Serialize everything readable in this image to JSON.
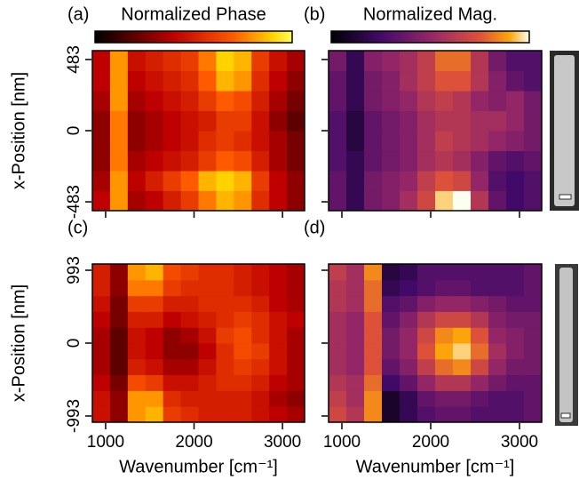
{
  "chart_data": [
    {
      "type": "heatmap",
      "panel_label": "(a)",
      "colorbar_label": "Normalized Phase",
      "colormap": "hot",
      "ylabel": "x-Position [nm]",
      "x": [
        950,
        1150,
        1350,
        1550,
        1750,
        1950,
        2150,
        2350,
        2550,
        2750,
        2950,
        3150
      ],
      "y": [
        -475,
        -339,
        -204,
        -68,
        68,
        204,
        339,
        475
      ],
      "z": [
        [
          0.4,
          0.8,
          0.35,
          0.4,
          0.5,
          0.6,
          0.75,
          0.85,
          0.8,
          0.55,
          0.4,
          0.3
        ],
        [
          0.35,
          0.8,
          0.4,
          0.5,
          0.6,
          0.7,
          0.85,
          0.9,
          0.85,
          0.6,
          0.4,
          0.3
        ],
        [
          0.3,
          0.75,
          0.35,
          0.4,
          0.45,
          0.5,
          0.6,
          0.7,
          0.65,
          0.5,
          0.35,
          0.25
        ],
        [
          0.3,
          0.75,
          0.3,
          0.35,
          0.4,
          0.45,
          0.55,
          0.6,
          0.55,
          0.45,
          0.35,
          0.25
        ],
        [
          0.3,
          0.75,
          0.3,
          0.35,
          0.4,
          0.45,
          0.5,
          0.6,
          0.6,
          0.45,
          0.3,
          0.2
        ],
        [
          0.35,
          0.8,
          0.35,
          0.4,
          0.45,
          0.5,
          0.6,
          0.7,
          0.65,
          0.5,
          0.35,
          0.25
        ],
        [
          0.4,
          0.8,
          0.4,
          0.45,
          0.5,
          0.55,
          0.7,
          0.85,
          0.8,
          0.55,
          0.4,
          0.3
        ],
        [
          0.4,
          0.8,
          0.45,
          0.5,
          0.55,
          0.6,
          0.75,
          0.9,
          0.85,
          0.6,
          0.45,
          0.35
        ]
      ],
      "xlim": [
        850,
        3250
      ],
      "xticks": [
        1000,
        2000,
        3000
      ],
      "ylim": [
        -543,
        543
      ],
      "yticks": [
        -483,
        0,
        483
      ]
    },
    {
      "type": "heatmap",
      "panel_label": "(b)",
      "colorbar_label": "Normalized Mag.",
      "colormap": "inferno",
      "x": [
        950,
        1150,
        1350,
        1550,
        1750,
        1950,
        2150,
        2350,
        2550,
        2750,
        2950,
        3150
      ],
      "y": [
        -475,
        -339,
        -204,
        -68,
        68,
        204,
        339,
        475
      ],
      "z": [
        [
          0.35,
          0.2,
          0.4,
          0.45,
          0.55,
          0.7,
          0.95,
          1.0,
          0.6,
          0.35,
          0.25,
          0.3
        ],
        [
          0.35,
          0.2,
          0.4,
          0.45,
          0.5,
          0.65,
          0.75,
          0.7,
          0.5,
          0.3,
          0.25,
          0.3
        ],
        [
          0.3,
          0.2,
          0.35,
          0.4,
          0.45,
          0.55,
          0.6,
          0.55,
          0.45,
          0.35,
          0.3,
          0.35
        ],
        [
          0.3,
          0.15,
          0.35,
          0.4,
          0.45,
          0.55,
          0.65,
          0.6,
          0.55,
          0.5,
          0.45,
          0.4
        ],
        [
          0.3,
          0.15,
          0.35,
          0.4,
          0.45,
          0.55,
          0.6,
          0.6,
          0.55,
          0.55,
          0.5,
          0.4
        ],
        [
          0.35,
          0.2,
          0.4,
          0.45,
          0.5,
          0.6,
          0.65,
          0.6,
          0.5,
          0.45,
          0.5,
          0.4
        ],
        [
          0.35,
          0.2,
          0.4,
          0.45,
          0.55,
          0.65,
          0.75,
          0.75,
          0.6,
          0.45,
          0.35,
          0.3
        ],
        [
          0.4,
          0.2,
          0.45,
          0.5,
          0.55,
          0.65,
          0.8,
          0.8,
          0.6,
          0.4,
          0.3,
          0.3
        ]
      ],
      "xlim": [
        850,
        3250
      ],
      "xticks": [
        1000,
        2000,
        3000
      ],
      "ylim": [
        -543,
        543
      ],
      "yticks": [
        -483,
        0,
        483
      ]
    },
    {
      "type": "heatmap",
      "panel_label": "(c)",
      "colormap": "hot",
      "ylabel": "x-Position [nm]",
      "xlabel": "Wavenumber [cm⁻¹]",
      "x": [
        950,
        1150,
        1350,
        1550,
        1750,
        1950,
        2150,
        2350,
        2550,
        2750,
        2950,
        3150
      ],
      "y": [
        -970,
        -754,
        -539,
        -323,
        -108,
        108,
        323,
        539,
        754,
        970
      ],
      "z": [
        [
          0.45,
          0.3,
          0.8,
          0.85,
          0.6,
          0.55,
          0.5,
          0.5,
          0.5,
          0.45,
          0.4,
          0.35
        ],
        [
          0.45,
          0.3,
          0.8,
          0.8,
          0.55,
          0.5,
          0.5,
          0.5,
          0.5,
          0.45,
          0.35,
          0.3
        ],
        [
          0.4,
          0.25,
          0.65,
          0.6,
          0.45,
          0.45,
          0.5,
          0.55,
          0.55,
          0.5,
          0.4,
          0.35
        ],
        [
          0.35,
          0.2,
          0.5,
          0.45,
          0.35,
          0.35,
          0.45,
          0.55,
          0.6,
          0.55,
          0.45,
          0.35
        ],
        [
          0.35,
          0.2,
          0.45,
          0.4,
          0.3,
          0.3,
          0.4,
          0.55,
          0.65,
          0.6,
          0.45,
          0.35
        ],
        [
          0.35,
          0.2,
          0.45,
          0.4,
          0.3,
          0.35,
          0.45,
          0.6,
          0.65,
          0.55,
          0.45,
          0.35
        ],
        [
          0.4,
          0.25,
          0.5,
          0.5,
          0.4,
          0.45,
          0.5,
          0.55,
          0.6,
          0.55,
          0.45,
          0.4
        ],
        [
          0.45,
          0.25,
          0.6,
          0.6,
          0.5,
          0.5,
          0.55,
          0.55,
          0.55,
          0.5,
          0.4,
          0.35
        ],
        [
          0.5,
          0.3,
          0.75,
          0.75,
          0.6,
          0.55,
          0.55,
          0.55,
          0.5,
          0.45,
          0.4,
          0.35
        ],
        [
          0.5,
          0.3,
          0.8,
          0.85,
          0.65,
          0.6,
          0.55,
          0.55,
          0.5,
          0.45,
          0.4,
          0.35
        ]
      ],
      "xlim": [
        850,
        3250
      ],
      "xticks": [
        1000,
        2000,
        3000
      ],
      "ylim": [
        -1078,
        1078
      ],
      "yticks": [
        -993,
        0,
        993
      ]
    },
    {
      "type": "heatmap",
      "panel_label": "(d)",
      "colormap": "inferno",
      "xlabel": "Wavenumber [cm⁻¹]",
      "x": [
        950,
        1150,
        1350,
        1550,
        1750,
        1950,
        2150,
        2350,
        2550,
        2750,
        2950,
        3150
      ],
      "y": [
        -970,
        -754,
        -539,
        -323,
        -108,
        108,
        323,
        539,
        754,
        970
      ],
      "z": [
        [
          0.7,
          0.6,
          0.85,
          0.1,
          0.2,
          0.3,
          0.35,
          0.35,
          0.3,
          0.3,
          0.3,
          0.35
        ],
        [
          0.65,
          0.55,
          0.85,
          0.1,
          0.2,
          0.35,
          0.4,
          0.4,
          0.35,
          0.3,
          0.3,
          0.35
        ],
        [
          0.6,
          0.55,
          0.8,
          0.25,
          0.35,
          0.5,
          0.6,
          0.6,
          0.5,
          0.4,
          0.35,
          0.35
        ],
        [
          0.55,
          0.5,
          0.75,
          0.35,
          0.45,
          0.65,
          0.8,
          0.85,
          0.7,
          0.5,
          0.4,
          0.4
        ],
        [
          0.55,
          0.5,
          0.75,
          0.4,
          0.5,
          0.75,
          0.9,
          0.95,
          0.8,
          0.55,
          0.45,
          0.4
        ],
        [
          0.55,
          0.5,
          0.75,
          0.4,
          0.5,
          0.7,
          0.85,
          0.9,
          0.75,
          0.5,
          0.45,
          0.4
        ],
        [
          0.55,
          0.5,
          0.75,
          0.35,
          0.45,
          0.6,
          0.7,
          0.7,
          0.6,
          0.45,
          0.4,
          0.4
        ],
        [
          0.6,
          0.55,
          0.8,
          0.3,
          0.35,
          0.45,
          0.5,
          0.5,
          0.45,
          0.4,
          0.35,
          0.35
        ],
        [
          0.6,
          0.55,
          0.8,
          0.2,
          0.25,
          0.3,
          0.35,
          0.35,
          0.3,
          0.3,
          0.3,
          0.35
        ],
        [
          0.65,
          0.55,
          0.85,
          0.15,
          0.2,
          0.3,
          0.3,
          0.3,
          0.3,
          0.3,
          0.3,
          0.35
        ]
      ],
      "xlim": [
        850,
        3250
      ],
      "xticks": [
        1000,
        2000,
        3000
      ],
      "ylim": [
        -1078,
        1078
      ],
      "yticks": [
        -993,
        0,
        993
      ]
    }
  ]
}
